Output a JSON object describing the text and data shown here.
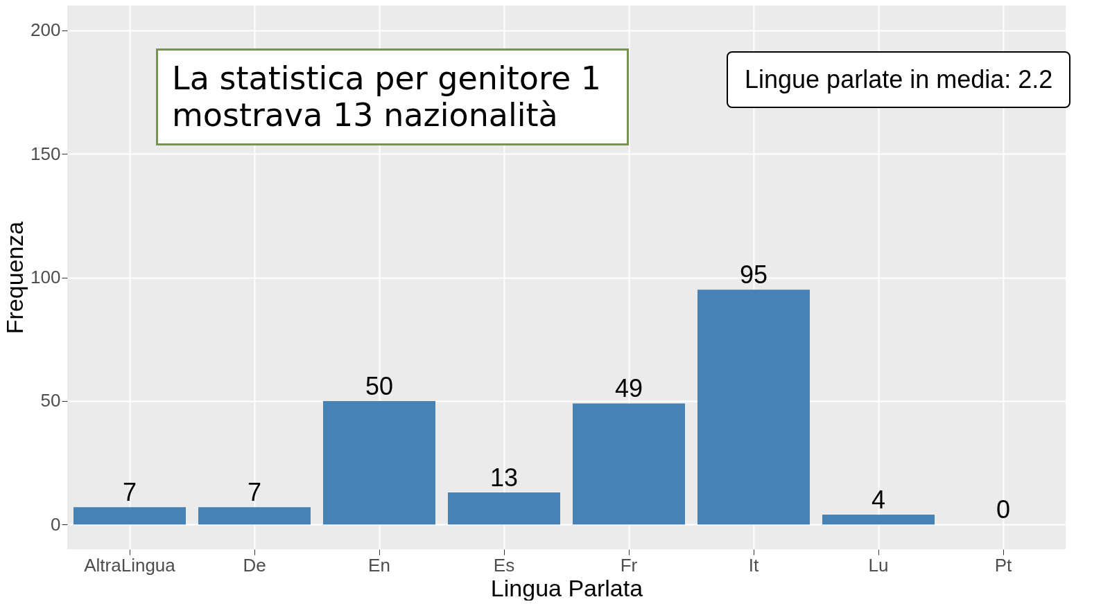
{
  "chart_data": {
    "type": "bar",
    "categories": [
      "AltraLingua",
      "De",
      "En",
      "Es",
      "Fr",
      "It",
      "Lu",
      "Pt"
    ],
    "values": [
      7,
      7,
      50,
      13,
      49,
      95,
      4,
      0
    ],
    "color": "#4682b4",
    "xlabel": "Lingua Parlata",
    "ylabel": "Frequenza",
    "ylim": [
      -10,
      210
    ],
    "yticks": [
      0,
      50,
      100,
      150,
      200
    ],
    "grid": true,
    "data_labels": true,
    "annotations": [
      "La statistica per genitore 1 mostrava 13 nazionalità",
      "Lingue parlate in media: 2.2"
    ]
  }
}
